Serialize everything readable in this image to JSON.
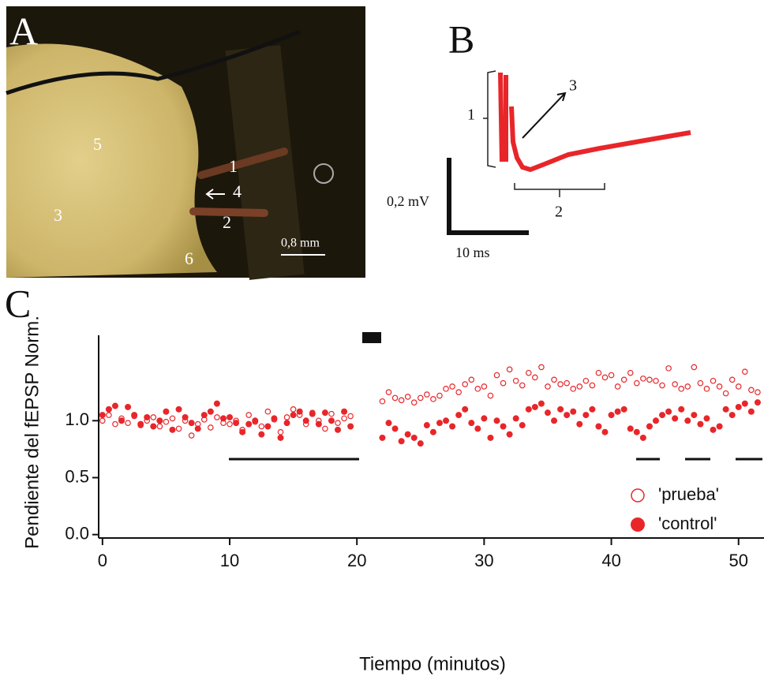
{
  "panel_a": {
    "label": "A",
    "regions": [
      "5",
      "3",
      "1",
      "4",
      "2",
      "6"
    ],
    "scale_bar": "0,8 mm"
  },
  "panel_b": {
    "label": "B",
    "annotations": [
      "1",
      "3",
      "2"
    ],
    "y_scale": "0,2 mV",
    "x_scale": "10 ms"
  },
  "chart_data": {
    "type": "scatter",
    "panel_label": "C",
    "xlabel": "Tiempo (minutos)",
    "ylabel": "Pendiente del fEPSP Norm.",
    "x": [
      0,
      0.5,
      1,
      1.5,
      2,
      2.5,
      3,
      3.5,
      4,
      4.5,
      5,
      5.5,
      6,
      6.5,
      7,
      7.5,
      8,
      8.5,
      9,
      9.5,
      10,
      10.5,
      11,
      11.5,
      12,
      12.5,
      13,
      13.5,
      14,
      14.5,
      15,
      15.5,
      16,
      16.5,
      17,
      17.5,
      18,
      18.5,
      19,
      19.5,
      22,
      22.5,
      23,
      23.5,
      24,
      24.5,
      25,
      25.5,
      26,
      26.5,
      27,
      27.5,
      28,
      28.5,
      29,
      29.5,
      30,
      30.5,
      31,
      31.5,
      32,
      32.5,
      33,
      33.5,
      34,
      34.5,
      35,
      35.5,
      36,
      36.5,
      37,
      37.5,
      38,
      38.5,
      39,
      39.5,
      40,
      40.5,
      41,
      41.5,
      42,
      42.5,
      43,
      43.5,
      44,
      44.5,
      45,
      45.5,
      46,
      46.5,
      47,
      47.5,
      48,
      48.5,
      49,
      49.5,
      50,
      50.5,
      51,
      51.5
    ],
    "series": [
      {
        "name": "'prueba'",
        "color": "#e8262a",
        "marker": "open",
        "values": [
          1.0,
          1.05,
          0.97,
          1.02,
          0.98,
          1.04,
          0.96,
          1.0,
          1.03,
          0.95,
          0.99,
          1.02,
          0.93,
          1.0,
          0.87,
          0.97,
          1.01,
          0.94,
          1.03,
          0.98,
          0.97,
          1.0,
          0.92,
          1.05,
          0.99,
          0.95,
          1.08,
          1.01,
          0.9,
          1.03,
          1.1,
          1.05,
          0.97,
          1.07,
          1.0,
          0.93,
          1.06,
          0.98,
          1.02,
          1.04,
          1.17,
          1.25,
          1.2,
          1.18,
          1.21,
          1.16,
          1.2,
          1.23,
          1.19,
          1.22,
          1.28,
          1.3,
          1.25,
          1.32,
          1.36,
          1.28,
          1.3,
          1.22,
          1.4,
          1.33,
          1.45,
          1.35,
          1.31,
          1.42,
          1.38,
          1.47,
          1.3,
          1.36,
          1.32,
          1.33,
          1.28,
          1.3,
          1.35,
          1.31,
          1.42,
          1.38,
          1.4,
          1.3,
          1.36,
          1.42,
          1.33,
          1.37,
          1.36,
          1.35,
          1.31,
          1.46,
          1.32,
          1.28,
          1.3,
          1.47,
          1.33,
          1.28,
          1.35,
          1.3,
          1.24,
          1.36,
          1.3,
          1.43,
          1.27,
          1.25
        ]
      },
      {
        "name": "'control'",
        "color": "#e8262a",
        "marker": "filled",
        "values": [
          1.05,
          1.1,
          1.13,
          1.0,
          1.12,
          1.05,
          0.97,
          1.03,
          0.95,
          1.0,
          1.08,
          0.92,
          1.1,
          1.03,
          0.98,
          0.93,
          1.05,
          1.08,
          1.15,
          1.02,
          1.03,
          0.98,
          0.9,
          0.97,
          1.0,
          0.88,
          0.95,
          1.02,
          0.85,
          0.98,
          1.05,
          1.08,
          1.0,
          1.06,
          0.97,
          1.07,
          1.0,
          0.92,
          1.08,
          0.95,
          0.85,
          0.98,
          0.93,
          0.82,
          0.88,
          0.85,
          0.8,
          0.96,
          0.9,
          0.98,
          1.0,
          0.95,
          1.05,
          1.1,
          0.98,
          0.93,
          1.02,
          0.85,
          1.0,
          0.95,
          0.88,
          1.02,
          0.96,
          1.1,
          1.12,
          1.15,
          1.07,
          1.0,
          1.1,
          1.05,
          1.08,
          0.97,
          1.05,
          1.1,
          0.95,
          0.9,
          1.05,
          1.08,
          1.1,
          0.93,
          0.9,
          0.85,
          0.95,
          1.0,
          1.05,
          1.08,
          1.02,
          1.1,
          1.0,
          1.05,
          0.97,
          1.02,
          0.92,
          0.95,
          1.1,
          1.05,
          1.12,
          1.15,
          1.08,
          1.16
        ]
      }
    ],
    "xlim": [
      -0.3,
      52
    ],
    "ylim": [
      -0.03,
      1.75
    ],
    "xticks": [
      0,
      10,
      20,
      30,
      40,
      50
    ],
    "yticks": [
      {
        "value": 0,
        "label": "0.0"
      },
      0.5,
      {
        "value": 1,
        "label": "1.0"
      }
    ],
    "legend": "right"
  }
}
